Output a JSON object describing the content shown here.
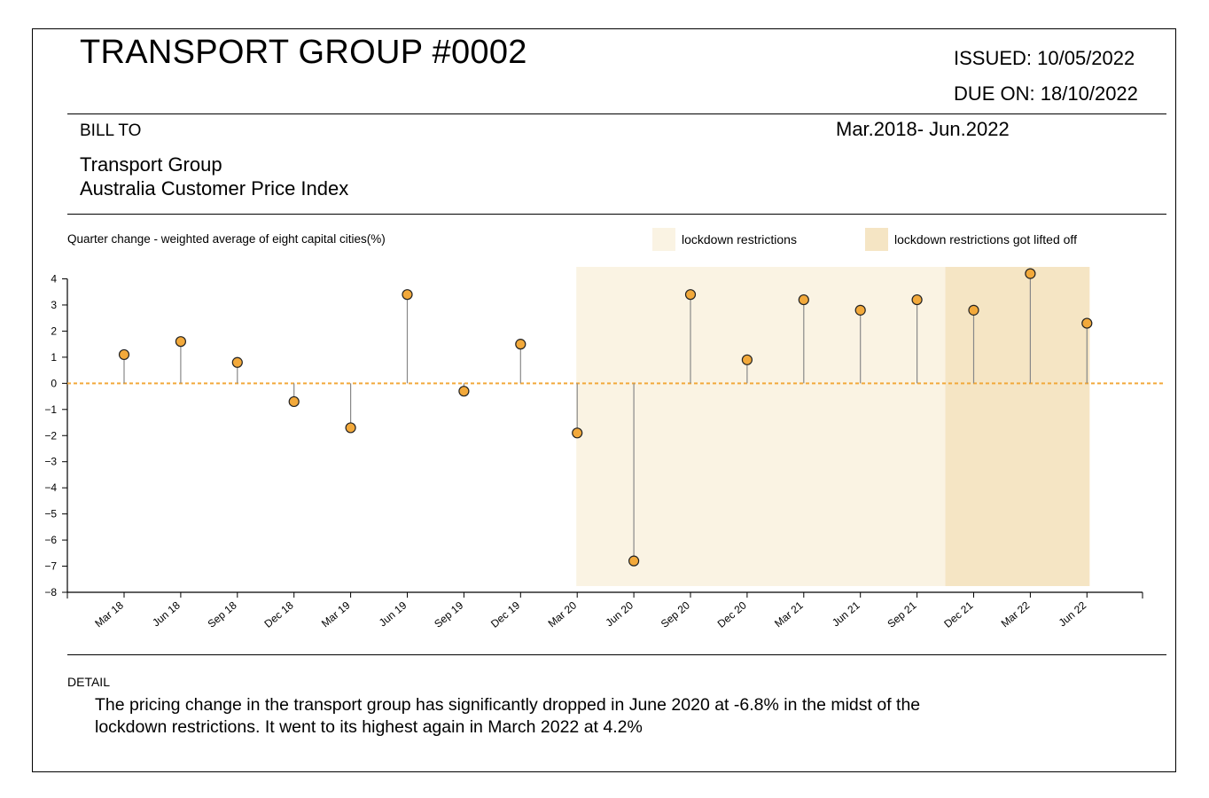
{
  "document": {
    "title": "TRANSPORT GROUP #0002",
    "issued": "ISSUED: 10/05/2022",
    "due": "DUE ON: 18/10/2022",
    "bill_to_label": "BILL TO",
    "period": "Mar.2018- Jun.2022",
    "bill_to_line1": "Transport Group",
    "bill_to_line2": "Australia Customer Price Index",
    "detail_label": "DETAIL",
    "detail_text": "The pricing change in the transport group has significantly dropped in June 2020 at -6.8% in the midst of the lockdown restrictions. It went to its highest again in March 2022 at 4.2%"
  },
  "chart_data": {
    "type": "lollipop",
    "title": "Quarter change - weighted average of eight capital cities(%)",
    "categories": [
      "Mar 18",
      "Jun 18",
      "Sep 18",
      "Dec 18",
      "Mar 19",
      "Jun 19",
      "Sep 19",
      "Dec 19",
      "Mar 20",
      "Jun 20",
      "Sep 20",
      "Dec 20",
      "Mar 21",
      "Jun 21",
      "Sep 21",
      "Dec 21",
      "Mar 22",
      "Jun 22"
    ],
    "values": [
      1.1,
      1.6,
      0.8,
      -0.7,
      -1.7,
      3.4,
      -0.3,
      1.5,
      -1.9,
      -6.8,
      3.4,
      0.9,
      3.2,
      2.8,
      3.2,
      2.8,
      4.2,
      2.3
    ],
    "ylim": [
      -8,
      4
    ],
    "yticks": [
      4,
      3,
      2,
      1,
      0,
      -1,
      -2,
      -3,
      -4,
      -5,
      -6,
      -7,
      -8
    ],
    "reference_line": 0,
    "shaded_periods": [
      {
        "label": "lockdown restrictions",
        "from": "Mar 20",
        "to": "Jun 22",
        "color": "#faf3e3"
      },
      {
        "label": "lockdown restrictions got lifted off",
        "from": "Dec 21",
        "to": "Jun 22",
        "color": "#f5e5c4"
      }
    ],
    "colors": {
      "marker_fill": "#f2a93b",
      "marker_stroke": "#222222",
      "stem": "#888888",
      "zero_line": "#f2a93b",
      "shade_lockdown": "#faf3e3",
      "shade_lifted": "#f5e5c4"
    }
  }
}
